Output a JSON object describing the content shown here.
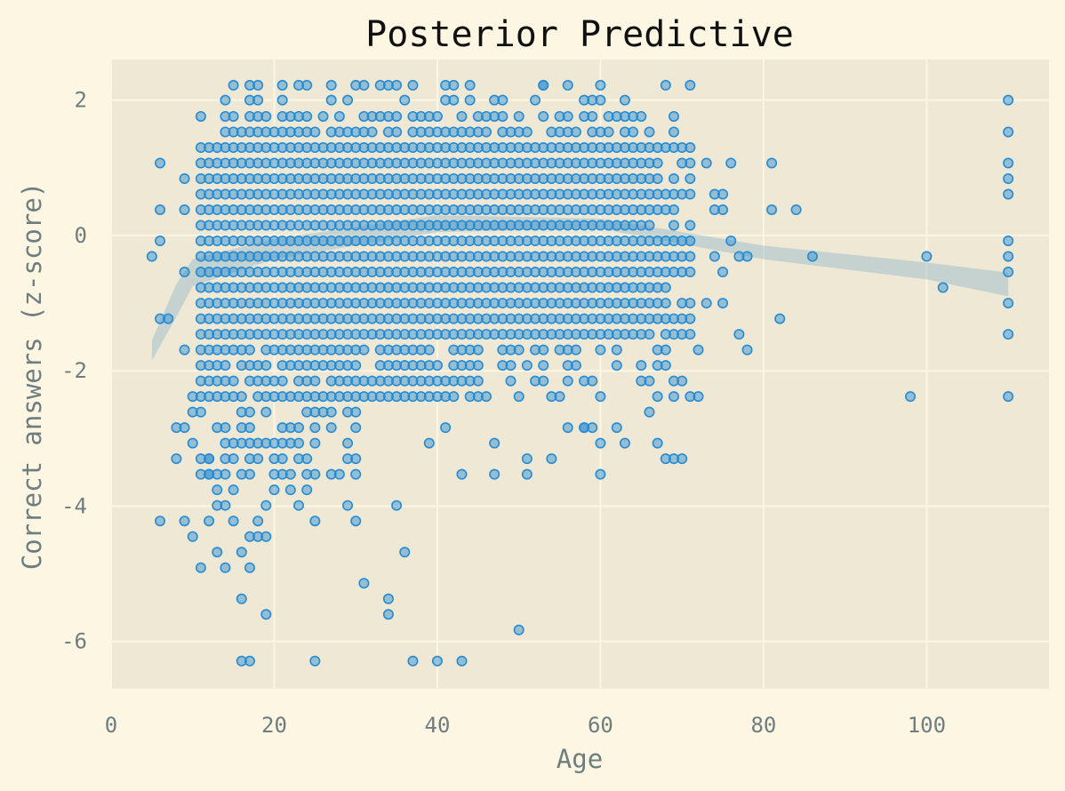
{
  "chart_data": {
    "type": "scatter",
    "title": "Posterior Predictive",
    "xlabel": "Age",
    "ylabel": "Correct answers (z-score)",
    "xlim": [
      0,
      115
    ],
    "ylim": [
      -6.7,
      2.6
    ],
    "xticks": [
      0,
      20,
      40,
      60,
      80,
      100
    ],
    "yticks": [
      2,
      0,
      -2,
      -4,
      -6
    ],
    "xtick_labels": [
      "0",
      "20",
      "40",
      "60",
      "80",
      "100"
    ],
    "ytick_labels": [
      "2",
      "0",
      "-2",
      "-4",
      "-6"
    ],
    "grid": true,
    "colors": {
      "points": "#268bd2",
      "band": "#93b7c7",
      "background": "#fdf6e3",
      "plot_area": "#eee8d5"
    },
    "z_levels": [
      2.22,
      2.0,
      1.76,
      1.53,
      1.3,
      1.07,
      0.84,
      0.61,
      0.38,
      0.15,
      -0.08,
      -0.31,
      -0.54,
      -0.77,
      -1.0,
      -1.23,
      -1.46,
      -1.69,
      -1.92,
      -2.15,
      -2.38,
      -2.61,
      -2.84,
      -3.07,
      -3.3,
      -3.53,
      -3.76,
      -3.99,
      -4.22,
      -4.45,
      -4.68,
      -4.91,
      -5.14,
      -5.37,
      -5.6,
      -5.83,
      -6.29
    ],
    "dense_cluster": {
      "age_range": [
        11,
        71
      ],
      "z_range": [
        -1.46,
        1.3
      ],
      "note_free": true
    },
    "points": [
      {
        "x": 5,
        "y": -0.31
      },
      {
        "x": 6,
        "y": 1.07
      },
      {
        "x": 6,
        "y": 0.38
      },
      {
        "x": 6,
        "y": -0.08
      },
      {
        "x": 6,
        "y": -1.23
      },
      {
        "x": 6,
        "y": -4.22
      },
      {
        "x": 7,
        "y": -1.23
      },
      {
        "x": 8,
        "y": -2.84
      },
      {
        "x": 8,
        "y": -3.3
      },
      {
        "x": 9,
        "y": 0.84
      },
      {
        "x": 9,
        "y": 0.38
      },
      {
        "x": 9,
        "y": -0.54
      },
      {
        "x": 9,
        "y": -1.69
      },
      {
        "x": 9,
        "y": -2.84
      },
      {
        "x": 9,
        "y": -4.22
      },
      {
        "x": 10,
        "y": -2.38
      },
      {
        "x": 10,
        "y": -2.61
      },
      {
        "x": 10,
        "y": -3.07
      },
      {
        "x": 10,
        "y": -4.45
      },
      {
        "x": 11,
        "y": -4.91
      },
      {
        "x": 12,
        "y": -3.3
      },
      {
        "x": 12,
        "y": -3.53
      },
      {
        "x": 12,
        "y": -4.22
      },
      {
        "x": 13,
        "y": -3.76
      },
      {
        "x": 13,
        "y": -3.99
      },
      {
        "x": 13,
        "y": -4.68
      },
      {
        "x": 14,
        "y": -3.99
      },
      {
        "x": 14,
        "y": -4.91
      },
      {
        "x": 15,
        "y": -3.76
      },
      {
        "x": 15,
        "y": -4.22
      },
      {
        "x": 16,
        "y": -4.68
      },
      {
        "x": 16,
        "y": -5.37
      },
      {
        "x": 16,
        "y": -6.29
      },
      {
        "x": 17,
        "y": -4.45
      },
      {
        "x": 17,
        "y": -4.91
      },
      {
        "x": 17,
        "y": -6.29
      },
      {
        "x": 18,
        "y": -4.22
      },
      {
        "x": 18,
        "y": -4.45
      },
      {
        "x": 19,
        "y": -3.99
      },
      {
        "x": 19,
        "y": -4.45
      },
      {
        "x": 19,
        "y": -5.6
      },
      {
        "x": 20,
        "y": -3.76
      },
      {
        "x": 22,
        "y": -3.76
      },
      {
        "x": 23,
        "y": -3.99
      },
      {
        "x": 24,
        "y": -3.76
      },
      {
        "x": 25,
        "y": -4.22
      },
      {
        "x": 25,
        "y": -6.29
      },
      {
        "x": 29,
        "y": -3.99
      },
      {
        "x": 30,
        "y": -4.22
      },
      {
        "x": 31,
        "y": -5.14
      },
      {
        "x": 34,
        "y": -5.37
      },
      {
        "x": 34,
        "y": -5.6
      },
      {
        "x": 35,
        "y": -3.99
      },
      {
        "x": 36,
        "y": -4.68
      },
      {
        "x": 37,
        "y": -6.29
      },
      {
        "x": 40,
        "y": -6.29
      },
      {
        "x": 43,
        "y": -6.29
      },
      {
        "x": 50,
        "y": -5.83
      },
      {
        "x": 51,
        "y": -3.3
      },
      {
        "x": 54,
        "y": -3.3
      },
      {
        "x": 56,
        "y": -2.84
      },
      {
        "x": 58,
        "y": -2.84
      },
      {
        "x": 60,
        "y": -3.07
      },
      {
        "x": 63,
        "y": -3.07
      },
      {
        "x": 66,
        "y": -2.61
      },
      {
        "x": 67,
        "y": -3.07
      },
      {
        "x": 69,
        "y": -3.3
      },
      {
        "x": 70,
        "y": -3.3
      },
      {
        "x": 71,
        "y": -2.38
      },
      {
        "x": 72,
        "y": -2.38
      },
      {
        "x": 71,
        "y": 0.61
      },
      {
        "x": 72,
        "y": -1.69
      },
      {
        "x": 73,
        "y": 1.07
      },
      {
        "x": 73,
        "y": -1.0
      },
      {
        "x": 74,
        "y": 0.61
      },
      {
        "x": 74,
        "y": 0.38
      },
      {
        "x": 74,
        "y": -0.31
      },
      {
        "x": 75,
        "y": 0.61
      },
      {
        "x": 75,
        "y": 0.38
      },
      {
        "x": 75,
        "y": -0.54
      },
      {
        "x": 75,
        "y": -1.0
      },
      {
        "x": 76,
        "y": 1.07
      },
      {
        "x": 76,
        "y": -0.08
      },
      {
        "x": 77,
        "y": -0.31
      },
      {
        "x": 77,
        "y": -1.46
      },
      {
        "x": 78,
        "y": -0.31
      },
      {
        "x": 78,
        "y": -1.69
      },
      {
        "x": 81,
        "y": 1.07
      },
      {
        "x": 81,
        "y": 0.38
      },
      {
        "x": 82,
        "y": -1.23
      },
      {
        "x": 84,
        "y": 0.38
      },
      {
        "x": 86,
        "y": -0.31
      },
      {
        "x": 98,
        "y": -2.38
      },
      {
        "x": 100,
        "y": -0.31
      },
      {
        "x": 102,
        "y": -0.77
      },
      {
        "x": 110,
        "y": 2.0
      },
      {
        "x": 110,
        "y": 1.53
      },
      {
        "x": 110,
        "y": 1.07
      },
      {
        "x": 110,
        "y": 0.84
      },
      {
        "x": 110,
        "y": 0.61
      },
      {
        "x": 110,
        "y": -0.08
      },
      {
        "x": 110,
        "y": -0.31
      },
      {
        "x": 110,
        "y": -0.54
      },
      {
        "x": 110,
        "y": -1.0
      },
      {
        "x": 110,
        "y": -1.46
      },
      {
        "x": 110,
        "y": -2.38
      },
      {
        "x": 30,
        "y": 2.22
      },
      {
        "x": 53,
        "y": 2.22
      }
    ],
    "band_upper": [
      [
        5,
        -1.55
      ],
      [
        8,
        -0.72
      ],
      [
        10,
        -0.35
      ],
      [
        20,
        -0.05
      ],
      [
        40,
        0.3
      ],
      [
        60,
        0.25
      ],
      [
        80,
        -0.15
      ],
      [
        100,
        -0.4
      ],
      [
        110,
        -0.55
      ]
    ],
    "band_lower": [
      [
        5,
        -1.85
      ],
      [
        8,
        -1.2
      ],
      [
        10,
        -0.75
      ],
      [
        20,
        -0.35
      ],
      [
        40,
        0.05
      ],
      [
        60,
        0.1
      ],
      [
        80,
        -0.35
      ],
      [
        100,
        -0.65
      ],
      [
        110,
        -0.9
      ]
    ]
  }
}
